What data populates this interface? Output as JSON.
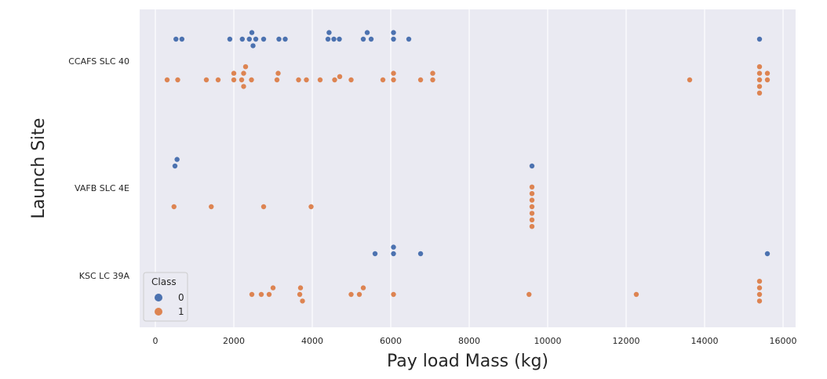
{
  "chart_data": {
    "type": "scatter",
    "subtype": "swarm",
    "title": "",
    "xlabel": "Pay load Mass (kg)",
    "ylabel": "Launch Site",
    "xlim": [
      -400,
      16300
    ],
    "xticks": [
      0,
      2000,
      4000,
      6000,
      8000,
      10000,
      12000,
      14000,
      16000
    ],
    "categories": [
      "CCAFS SLC 40",
      "VAFB SLC 4E",
      "KSC LC 39A"
    ],
    "grid": true,
    "legend": {
      "title": "Class",
      "placement": "lower-left",
      "entries": [
        "0",
        "1"
      ]
    },
    "colors": {
      "0": "#4c72b0",
      "1": "#dd8452"
    },
    "background": "#eaeaf2",
    "series": [
      {
        "name": "0",
        "points": {
          "CCAFS SLC 40": [
            525,
            677,
            1898,
            2216,
            2395,
            2460,
            2490,
            2560,
            2760,
            3150,
            3310,
            4428,
            4400,
            4550,
            4690,
            5300,
            5400,
            5500,
            6070,
            6070,
            6460,
            15400
          ],
          "VAFB SLC 4E": [
            500,
            553,
            9600
          ],
          "KSC LC 39A": [
            5600,
            6070,
            6070,
            6761,
            15600
          ]
        }
      },
      {
        "name": "1",
        "points": {
          "CCAFS SLC 40": [
            300,
            570,
            1300,
            1600,
            2000,
            2000,
            2200,
            2250,
            2250,
            2300,
            2450,
            3100,
            3130,
            3650,
            3850,
            4200,
            4570,
            4700,
            4990,
            5800,
            6070,
            6070,
            6761,
            7070,
            7070,
            13620,
            15400,
            15400,
            15400,
            15400,
            15400,
            15600,
            15600
          ],
          "VAFB SLC 4E": [
            475,
            1425,
            2760,
            3970,
            9600,
            9600,
            9600,
            9600,
            9600,
            9600,
            9600
          ],
          "KSC LC 39A": [
            2460,
            2700,
            2900,
            3000,
            3681,
            3700,
            3750,
            4990,
            5200,
            5300,
            6070,
            9525,
            12259,
            15400,
            15400,
            15400,
            15400
          ]
        }
      }
    ]
  }
}
